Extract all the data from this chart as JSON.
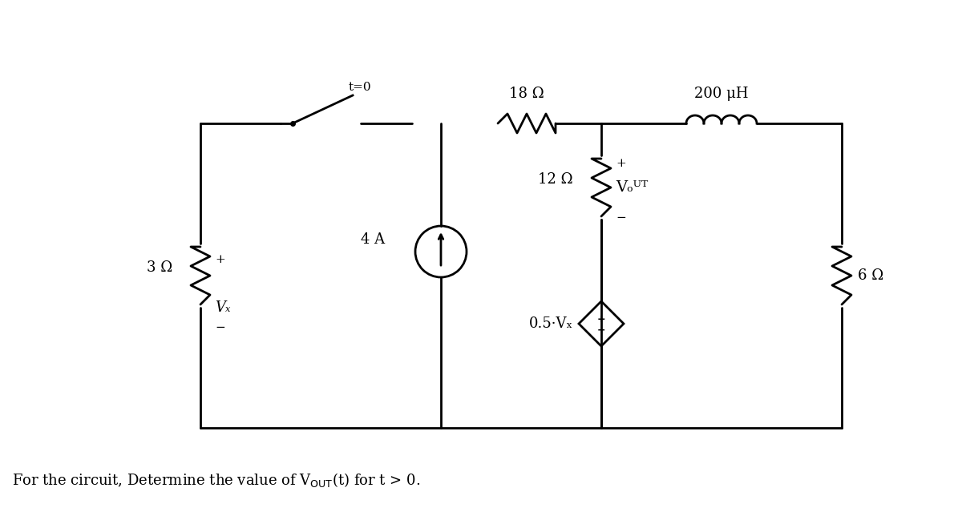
{
  "bg_color": "#ffffff",
  "line_color": "#000000",
  "line_width": 2.0,
  "fig_width": 12.0,
  "fig_height": 6.34,
  "title_text": "For the circuit, Determine the value of V\\u2080\\u1d41\\u1d40(t) for t > 0.",
  "resistor_3_label": "3 Ω",
  "resistor_18_label": "18 Ω",
  "resistor_12_label": "12 Ω",
  "resistor_6_label": "6 Ω",
  "inductor_label": "200 μH",
  "current_source_label": "4 A",
  "dep_source_label": "0.5·Vₓ",
  "vx_label": "Vₓ",
  "vout_label": "Vₒᵁᵀ",
  "switch_label": "t=0"
}
